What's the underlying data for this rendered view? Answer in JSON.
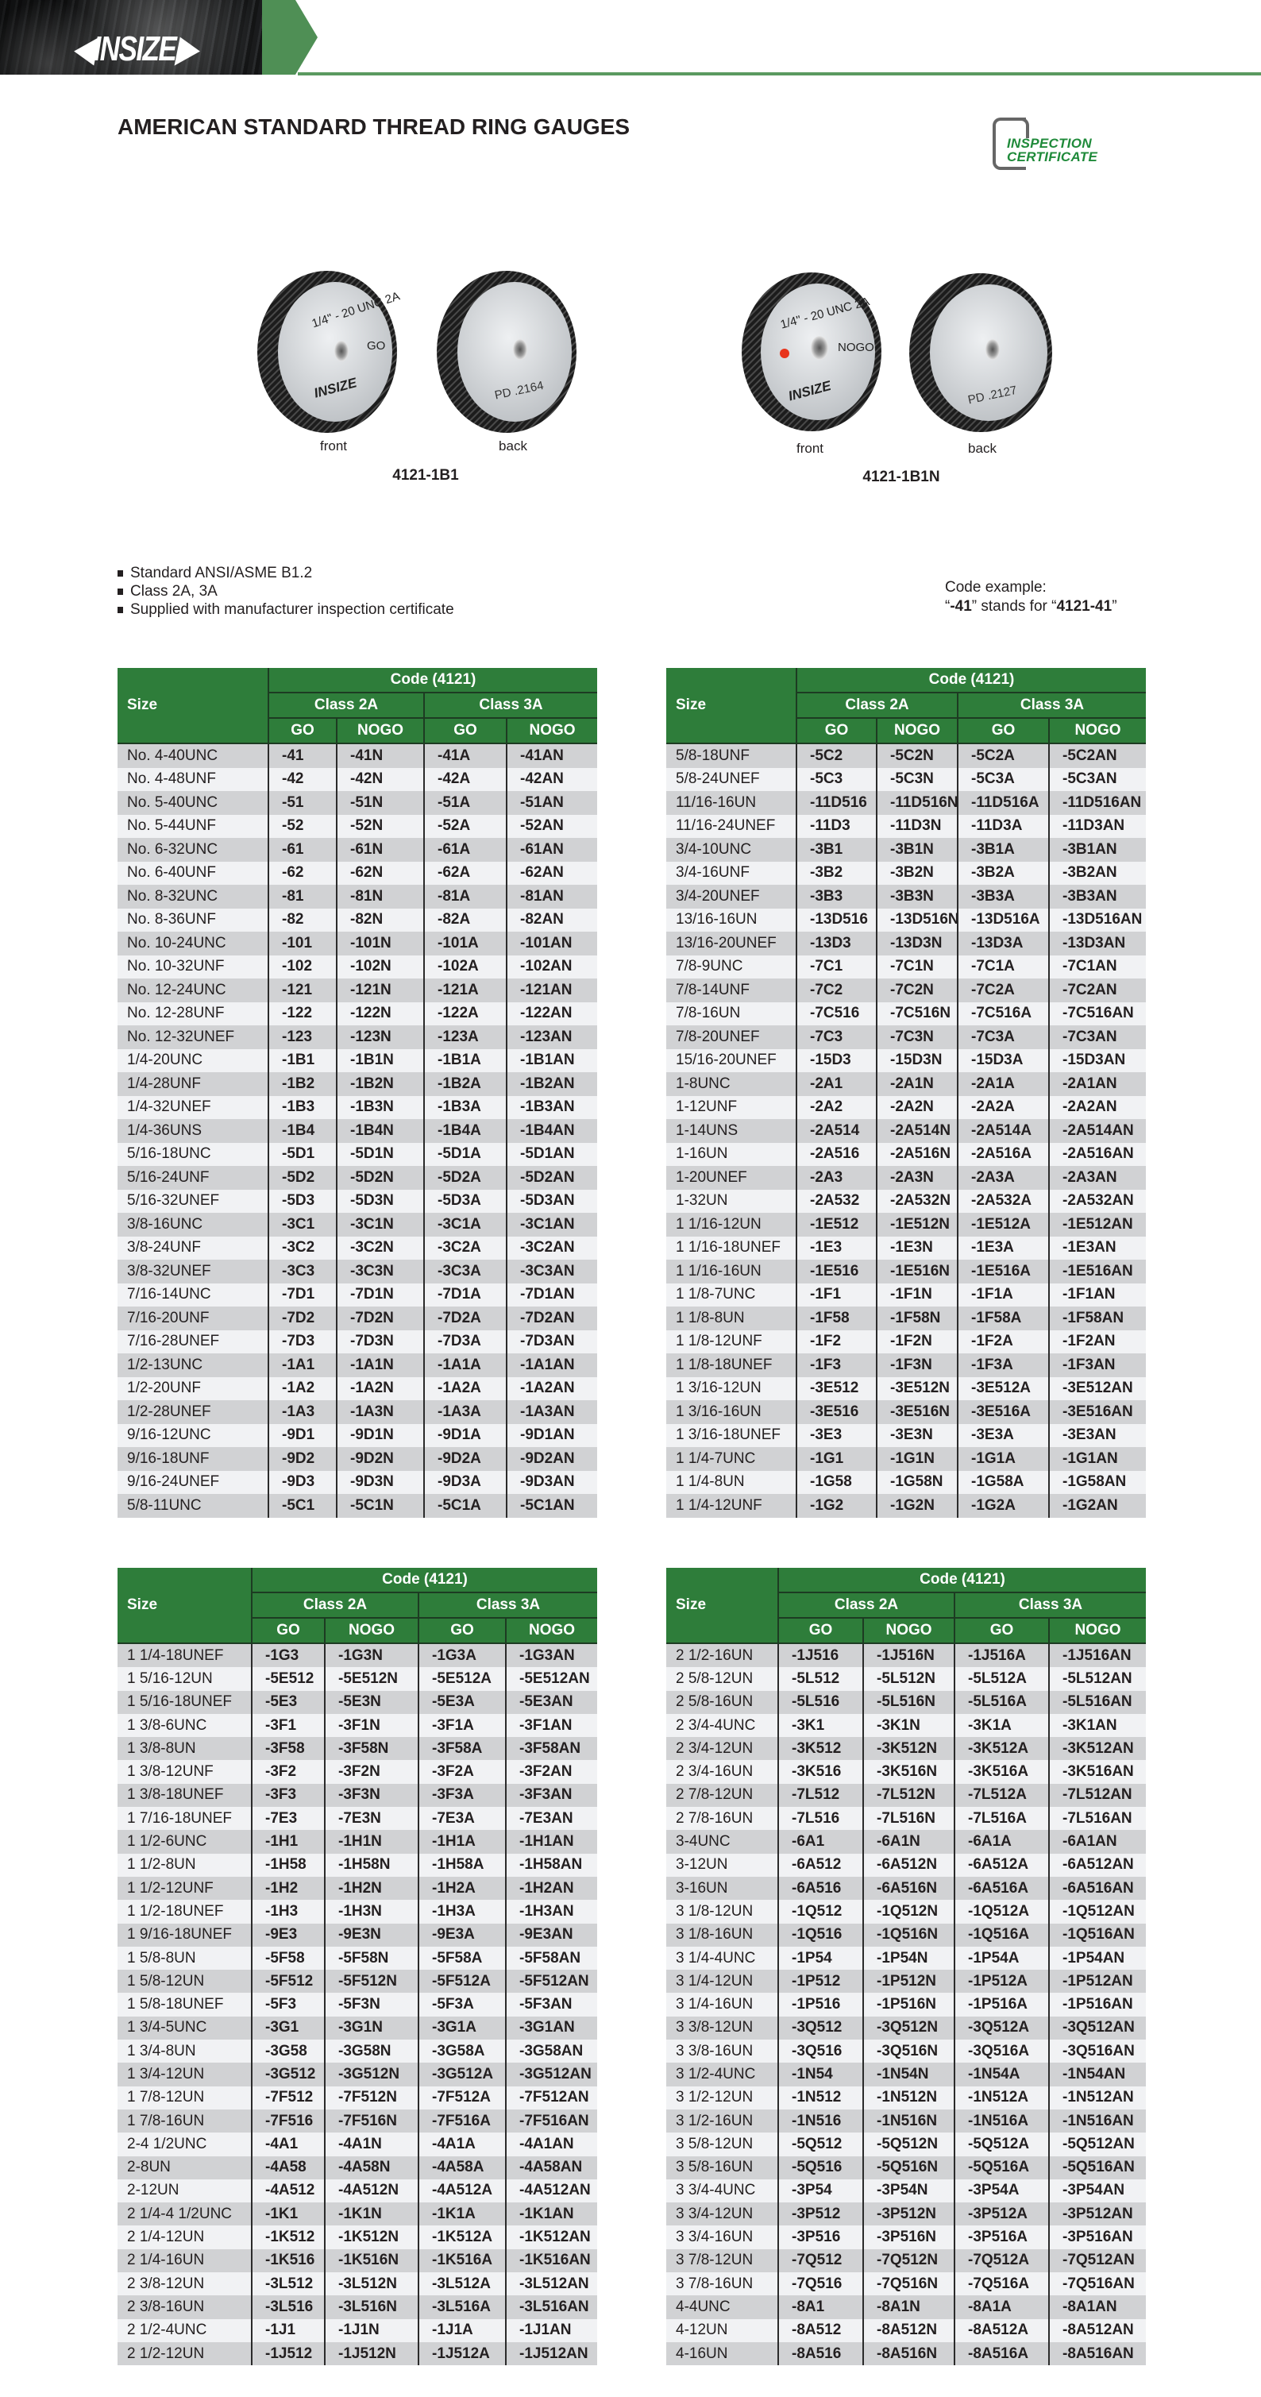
{
  "banner": {
    "logo_text": "INSIZE",
    "accent": "#4f8f55"
  },
  "title": "AMERICAN STANDARD THREAD RING GAUGES",
  "certificate_badge": {
    "line1": "INSPECTION",
    "line2": "CERTIFICATE",
    "color": "#1f8a3a"
  },
  "products": [
    {
      "model": "4121-1B1",
      "front_label": "front",
      "back_label": "back",
      "front_marking": "1/4\" - 20 UNC 2A",
      "front_type": "GO",
      "front_brand": "INSIZE",
      "back_marking": "PD  .2164"
    },
    {
      "model": "4121-1B1N",
      "front_label": "front",
      "back_label": "back",
      "front_marking": "1/4\" - 20 UNC 2A",
      "front_type": "NOGO",
      "front_brand": "INSIZE",
      "back_marking": "PD  .2127"
    }
  ],
  "features": [
    "Standard ANSI/ASME B1.2",
    "Class 2A, 3A",
    "Supplied with manufacturer inspection certificate"
  ],
  "code_example": {
    "line1": "Code example:",
    "q1": "“",
    "code": "-41",
    "mid": "” stands for “",
    "full": "4121-41",
    "q2": "”"
  },
  "table_header": {
    "size": "Size",
    "code": "Code (4121)",
    "class_2a": "Class 2A",
    "class_3a": "Class 3A",
    "go": "GO",
    "nogo": "NOGO"
  },
  "colors": {
    "header_green": "#2e7d3a",
    "row_dark": "#d1d2d4",
    "row_light": "#f1f2f4"
  },
  "tables": [
    {
      "rows": [
        [
          "No. 4-40UNC",
          "-41",
          "-41N",
          "-41A",
          "-41AN"
        ],
        [
          "No. 4-48UNF",
          "-42",
          "-42N",
          "-42A",
          "-42AN"
        ],
        [
          "No. 5-40UNC",
          "-51",
          "-51N",
          "-51A",
          "-51AN"
        ],
        [
          "No. 5-44UNF",
          "-52",
          "-52N",
          "-52A",
          "-52AN"
        ],
        [
          "No. 6-32UNC",
          "-61",
          "-61N",
          "-61A",
          "-61AN"
        ],
        [
          "No. 6-40UNF",
          "-62",
          "-62N",
          "-62A",
          "-62AN"
        ],
        [
          "No. 8-32UNC",
          "-81",
          "-81N",
          "-81A",
          "-81AN"
        ],
        [
          "No. 8-36UNF",
          "-82",
          "-82N",
          "-82A",
          "-82AN"
        ],
        [
          "No. 10-24UNC",
          "-101",
          "-101N",
          "-101A",
          "-101AN"
        ],
        [
          "No. 10-32UNF",
          "-102",
          "-102N",
          "-102A",
          "-102AN"
        ],
        [
          "No. 12-24UNC",
          "-121",
          "-121N",
          "-121A",
          "-121AN"
        ],
        [
          "No. 12-28UNF",
          "-122",
          "-122N",
          "-122A",
          "-122AN"
        ],
        [
          "No. 12-32UNEF",
          "-123",
          "-123N",
          "-123A",
          "-123AN"
        ],
        [
          "1/4-20UNC",
          "-1B1",
          "-1B1N",
          "-1B1A",
          "-1B1AN"
        ],
        [
          "1/4-28UNF",
          "-1B2",
          "-1B2N",
          "-1B2A",
          "-1B2AN"
        ],
        [
          "1/4-32UNEF",
          "-1B3",
          "-1B3N",
          "-1B3A",
          "-1B3AN"
        ],
        [
          "1/4-36UNS",
          "-1B4",
          "-1B4N",
          "-1B4A",
          "-1B4AN"
        ],
        [
          "5/16-18UNC",
          "-5D1",
          "-5D1N",
          "-5D1A",
          "-5D1AN"
        ],
        [
          "5/16-24UNF",
          "-5D2",
          "-5D2N",
          "-5D2A",
          "-5D2AN"
        ],
        [
          "5/16-32UNEF",
          "-5D3",
          "-5D3N",
          "-5D3A",
          "-5D3AN"
        ],
        [
          "3/8-16UNC",
          "-3C1",
          "-3C1N",
          "-3C1A",
          "-3C1AN"
        ],
        [
          "3/8-24UNF",
          "-3C2",
          "-3C2N",
          "-3C2A",
          "-3C2AN"
        ],
        [
          "3/8-32UNEF",
          "-3C3",
          "-3C3N",
          "-3C3A",
          "-3C3AN"
        ],
        [
          "7/16-14UNC",
          "-7D1",
          "-7D1N",
          "-7D1A",
          "-7D1AN"
        ],
        [
          "7/16-20UNF",
          "-7D2",
          "-7D2N",
          "-7D2A",
          "-7D2AN"
        ],
        [
          "7/16-28UNEF",
          "-7D3",
          "-7D3N",
          "-7D3A",
          "-7D3AN"
        ],
        [
          "1/2-13UNC",
          "-1A1",
          "-1A1N",
          "-1A1A",
          "-1A1AN"
        ],
        [
          "1/2-20UNF",
          "-1A2",
          "-1A2N",
          "-1A2A",
          "-1A2AN"
        ],
        [
          "1/2-28UNEF",
          "-1A3",
          "-1A3N",
          "-1A3A",
          "-1A3AN"
        ],
        [
          "9/16-12UNC",
          "-9D1",
          "-9D1N",
          "-9D1A",
          "-9D1AN"
        ],
        [
          "9/16-18UNF",
          "-9D2",
          "-9D2N",
          "-9D2A",
          "-9D2AN"
        ],
        [
          "9/16-24UNEF",
          "-9D3",
          "-9D3N",
          "-9D3A",
          "-9D3AN"
        ],
        [
          "5/8-11UNC",
          "-5C1",
          "-5C1N",
          "-5C1A",
          "-5C1AN"
        ]
      ]
    },
    {
      "rows": [
        [
          "5/8-18UNF",
          "-5C2",
          "-5C2N",
          "-5C2A",
          "-5C2AN"
        ],
        [
          "5/8-24UNEF",
          "-5C3",
          "-5C3N",
          "-5C3A",
          "-5C3AN"
        ],
        [
          "11/16-16UN",
          "-11D516",
          "-11D516N",
          "-11D516A",
          "-11D516AN"
        ],
        [
          "11/16-24UNEF",
          "-11D3",
          "-11D3N",
          "-11D3A",
          "-11D3AN"
        ],
        [
          "3/4-10UNC",
          "-3B1",
          "-3B1N",
          "-3B1A",
          "-3B1AN"
        ],
        [
          "3/4-16UNF",
          "-3B2",
          "-3B2N",
          "-3B2A",
          "-3B2AN"
        ],
        [
          "3/4-20UNEF",
          "-3B3",
          "-3B3N",
          "-3B3A",
          "-3B3AN"
        ],
        [
          "13/16-16UN",
          "-13D516",
          "-13D516N",
          "-13D516A",
          "-13D516AN"
        ],
        [
          "13/16-20UNEF",
          "-13D3",
          "-13D3N",
          "-13D3A",
          "-13D3AN"
        ],
        [
          "7/8-9UNC",
          "-7C1",
          "-7C1N",
          "-7C1A",
          "-7C1AN"
        ],
        [
          "7/8-14UNF",
          "-7C2",
          "-7C2N",
          "-7C2A",
          "-7C2AN"
        ],
        [
          "7/8-16UN",
          "-7C516",
          "-7C516N",
          "-7C516A",
          "-7C516AN"
        ],
        [
          "7/8-20UNEF",
          "-7C3",
          "-7C3N",
          "-7C3A",
          "-7C3AN"
        ],
        [
          "15/16-20UNEF",
          "-15D3",
          "-15D3N",
          "-15D3A",
          "-15D3AN"
        ],
        [
          "1-8UNC",
          "-2A1",
          "-2A1N",
          "-2A1A",
          "-2A1AN"
        ],
        [
          "1-12UNF",
          "-2A2",
          "-2A2N",
          "-2A2A",
          "-2A2AN"
        ],
        [
          "1-14UNS",
          "-2A514",
          "-2A514N",
          "-2A514A",
          "-2A514AN"
        ],
        [
          "1-16UN",
          "-2A516",
          "-2A516N",
          "-2A516A",
          "-2A516AN"
        ],
        [
          "1-20UNEF",
          "-2A3",
          "-2A3N",
          "-2A3A",
          "-2A3AN"
        ],
        [
          "1-32UN",
          "-2A532",
          "-2A532N",
          "-2A532A",
          "-2A532AN"
        ],
        [
          "1 1/16-12UN",
          "-1E512",
          "-1E512N",
          "-1E512A",
          "-1E512AN"
        ],
        [
          "1 1/16-18UNEF",
          "-1E3",
          "-1E3N",
          "-1E3A",
          "-1E3AN"
        ],
        [
          "1 1/16-16UN",
          "-1E516",
          "-1E516N",
          "-1E516A",
          "-1E516AN"
        ],
        [
          "1 1/8-7UNC",
          "-1F1",
          "-1F1N",
          "-1F1A",
          "-1F1AN"
        ],
        [
          "1 1/8-8UN",
          "-1F58",
          "-1F58N",
          "-1F58A",
          "-1F58AN"
        ],
        [
          "1 1/8-12UNF",
          "-1F2",
          "-1F2N",
          "-1F2A",
          "-1F2AN"
        ],
        [
          "1 1/8-18UNEF",
          "-1F3",
          "-1F3N",
          "-1F3A",
          "-1F3AN"
        ],
        [
          "1 3/16-12UN",
          "-3E512",
          "-3E512N",
          "-3E512A",
          "-3E512AN"
        ],
        [
          "1 3/16-16UN",
          "-3E516",
          "-3E516N",
          "-3E516A",
          "-3E516AN"
        ],
        [
          "1 3/16-18UNEF",
          "-3E3",
          "-3E3N",
          "-3E3A",
          "-3E3AN"
        ],
        [
          "1 1/4-7UNC",
          "-1G1",
          "-1G1N",
          "-1G1A",
          "-1G1AN"
        ],
        [
          "1 1/4-8UN",
          "-1G58",
          "-1G58N",
          "-1G58A",
          "-1G58AN"
        ],
        [
          "1 1/4-12UNF",
          "-1G2",
          "-1G2N",
          "-1G2A",
          "-1G2AN"
        ]
      ]
    },
    {
      "rows": [
        [
          "1 1/4-18UNEF",
          "-1G3",
          "-1G3N",
          "-1G3A",
          "-1G3AN"
        ],
        [
          "1 5/16-12UN",
          "-5E512",
          "-5E512N",
          "-5E512A",
          "-5E512AN"
        ],
        [
          "1 5/16-18UNEF",
          "-5E3",
          "-5E3N",
          "-5E3A",
          "-5E3AN"
        ],
        [
          "1 3/8-6UNC",
          "-3F1",
          "-3F1N",
          "-3F1A",
          "-3F1AN"
        ],
        [
          "1 3/8-8UN",
          "-3F58",
          "-3F58N",
          "-3F58A",
          "-3F58AN"
        ],
        [
          "1 3/8-12UNF",
          "-3F2",
          "-3F2N",
          "-3F2A",
          "-3F2AN"
        ],
        [
          "1 3/8-18UNEF",
          "-3F3",
          "-3F3N",
          "-3F3A",
          "-3F3AN"
        ],
        [
          "1 7/16-18UNEF",
          "-7E3",
          "-7E3N",
          "-7E3A",
          "-7E3AN"
        ],
        [
          "1 1/2-6UNC",
          "-1H1",
          "-1H1N",
          "-1H1A",
          "-1H1AN"
        ],
        [
          "1 1/2-8UN",
          "-1H58",
          "-1H58N",
          "-1H58A",
          "-1H58AN"
        ],
        [
          "1 1/2-12UNF",
          "-1H2",
          "-1H2N",
          "-1H2A",
          "-1H2AN"
        ],
        [
          "1 1/2-18UNEF",
          "-1H3",
          "-1H3N",
          "-1H3A",
          "-1H3AN"
        ],
        [
          "1 9/16-18UNEF",
          "-9E3",
          "-9E3N",
          "-9E3A",
          "-9E3AN"
        ],
        [
          "1 5/8-8UN",
          "-5F58",
          "-5F58N",
          "-5F58A",
          "-5F58AN"
        ],
        [
          "1 5/8-12UN",
          "-5F512",
          "-5F512N",
          "-5F512A",
          "-5F512AN"
        ],
        [
          "1 5/8-18UNEF",
          "-5F3",
          "-5F3N",
          "-5F3A",
          "-5F3AN"
        ],
        [
          "1 3/4-5UNC",
          "-3G1",
          "-3G1N",
          "-3G1A",
          "-3G1AN"
        ],
        [
          "1 3/4-8UN",
          "-3G58",
          "-3G58N",
          "-3G58A",
          "-3G58AN"
        ],
        [
          "1 3/4-12UN",
          "-3G512",
          "-3G512N",
          "-3G512A",
          "-3G512AN"
        ],
        [
          "1 7/8-12UN",
          "-7F512",
          "-7F512N",
          "-7F512A",
          "-7F512AN"
        ],
        [
          "1 7/8-16UN",
          "-7F516",
          "-7F516N",
          "-7F516A",
          "-7F516AN"
        ],
        [
          "2-4 1/2UNC",
          "-4A1",
          "-4A1N",
          "-4A1A",
          "-4A1AN"
        ],
        [
          "2-8UN",
          "-4A58",
          "-4A58N",
          "-4A58A",
          "-4A58AN"
        ],
        [
          "2-12UN",
          "-4A512",
          "-4A512N",
          "-4A512A",
          "-4A512AN"
        ],
        [
          "2 1/4-4 1/2UNC",
          "-1K1",
          "-1K1N",
          "-1K1A",
          "-1K1AN"
        ],
        [
          "2 1/4-12UN",
          "-1K512",
          "-1K512N",
          "-1K512A",
          "-1K512AN"
        ],
        [
          "2 1/4-16UN",
          "-1K516",
          "-1K516N",
          "-1K516A",
          "-1K516AN"
        ],
        [
          "2 3/8-12UN",
          "-3L512",
          "-3L512N",
          "-3L512A",
          "-3L512AN"
        ],
        [
          "2 3/8-16UN",
          "-3L516",
          "-3L516N",
          "-3L516A",
          "-3L516AN"
        ],
        [
          "2 1/2-4UNC",
          "-1J1",
          "-1J1N",
          "-1J1A",
          "-1J1AN"
        ],
        [
          "2 1/2-12UN",
          "-1J512",
          "-1J512N",
          "-1J512A",
          "-1J512AN"
        ]
      ]
    },
    {
      "rows": [
        [
          "2 1/2-16UN",
          "-1J516",
          "-1J516N",
          "-1J516A",
          "-1J516AN"
        ],
        [
          "2 5/8-12UN",
          "-5L512",
          "-5L512N",
          "-5L512A",
          "-5L512AN"
        ],
        [
          "2 5/8-16UN",
          "-5L516",
          "-5L516N",
          "-5L516A",
          "-5L516AN"
        ],
        [
          "2 3/4-4UNC",
          "-3K1",
          "-3K1N",
          "-3K1A",
          "-3K1AN"
        ],
        [
          "2 3/4-12UN",
          "-3K512",
          "-3K512N",
          "-3K512A",
          "-3K512AN"
        ],
        [
          "2 3/4-16UN",
          "-3K516",
          "-3K516N",
          "-3K516A",
          "-3K516AN"
        ],
        [
          "2 7/8-12UN",
          "-7L512",
          "-7L512N",
          "-7L512A",
          "-7L512AN"
        ],
        [
          "2 7/8-16UN",
          "-7L516",
          "-7L516N",
          "-7L516A",
          "-7L516AN"
        ],
        [
          "3-4UNC",
          "-6A1",
          "-6A1N",
          "-6A1A",
          "-6A1AN"
        ],
        [
          "3-12UN",
          "-6A512",
          "-6A512N",
          "-6A512A",
          "-6A512AN"
        ],
        [
          "3-16UN",
          "-6A516",
          "-6A516N",
          "-6A516A",
          "-6A516AN"
        ],
        [
          "3 1/8-12UN",
          "-1Q512",
          "-1Q512N",
          "-1Q512A",
          "-1Q512AN"
        ],
        [
          "3 1/8-16UN",
          "-1Q516",
          "-1Q516N",
          "-1Q516A",
          "-1Q516AN"
        ],
        [
          "3 1/4-4UNC",
          "-1P54",
          "-1P54N",
          "-1P54A",
          "-1P54AN"
        ],
        [
          "3 1/4-12UN",
          "-1P512",
          "-1P512N",
          "-1P512A",
          "-1P512AN"
        ],
        [
          "3 1/4-16UN",
          "-1P516",
          "-1P516N",
          "-1P516A",
          "-1P516AN"
        ],
        [
          "3 3/8-12UN",
          "-3Q512",
          "-3Q512N",
          "-3Q512A",
          "-3Q512AN"
        ],
        [
          "3 3/8-16UN",
          "-3Q516",
          "-3Q516N",
          "-3Q516A",
          "-3Q516AN"
        ],
        [
          "3 1/2-4UNC",
          "-1N54",
          "-1N54N",
          "-1N54A",
          "-1N54AN"
        ],
        [
          "3 1/2-12UN",
          "-1N512",
          "-1N512N",
          "-1N512A",
          "-1N512AN"
        ],
        [
          "3 1/2-16UN",
          "-1N516",
          "-1N516N",
          "-1N516A",
          "-1N516AN"
        ],
        [
          "3 5/8-12UN",
          "-5Q512",
          "-5Q512N",
          "-5Q512A",
          "-5Q512AN"
        ],
        [
          "3 5/8-16UN",
          "-5Q516",
          "-5Q516N",
          "-5Q516A",
          "-5Q516AN"
        ],
        [
          "3 3/4-4UNC",
          "-3P54",
          "-3P54N",
          "-3P54A",
          "-3P54AN"
        ],
        [
          "3 3/4-12UN",
          "-3P512",
          "-3P512N",
          "-3P512A",
          "-3P512AN"
        ],
        [
          "3 3/4-16UN",
          "-3P516",
          "-3P516N",
          "-3P516A",
          "-3P516AN"
        ],
        [
          "3 7/8-12UN",
          "-7Q512",
          "-7Q512N",
          "-7Q512A",
          "-7Q512AN"
        ],
        [
          "3 7/8-16UN",
          "-7Q516",
          "-7Q516N",
          "-7Q516A",
          "-7Q516AN"
        ],
        [
          "4-4UNC",
          "-8A1",
          "-8A1N",
          "-8A1A",
          "-8A1AN"
        ],
        [
          "4-12UN",
          "-8A512",
          "-8A512N",
          "-8A512A",
          "-8A512AN"
        ],
        [
          "4-16UN",
          "-8A516",
          "-8A516N",
          "-8A516A",
          "-8A516AN"
        ]
      ]
    }
  ]
}
